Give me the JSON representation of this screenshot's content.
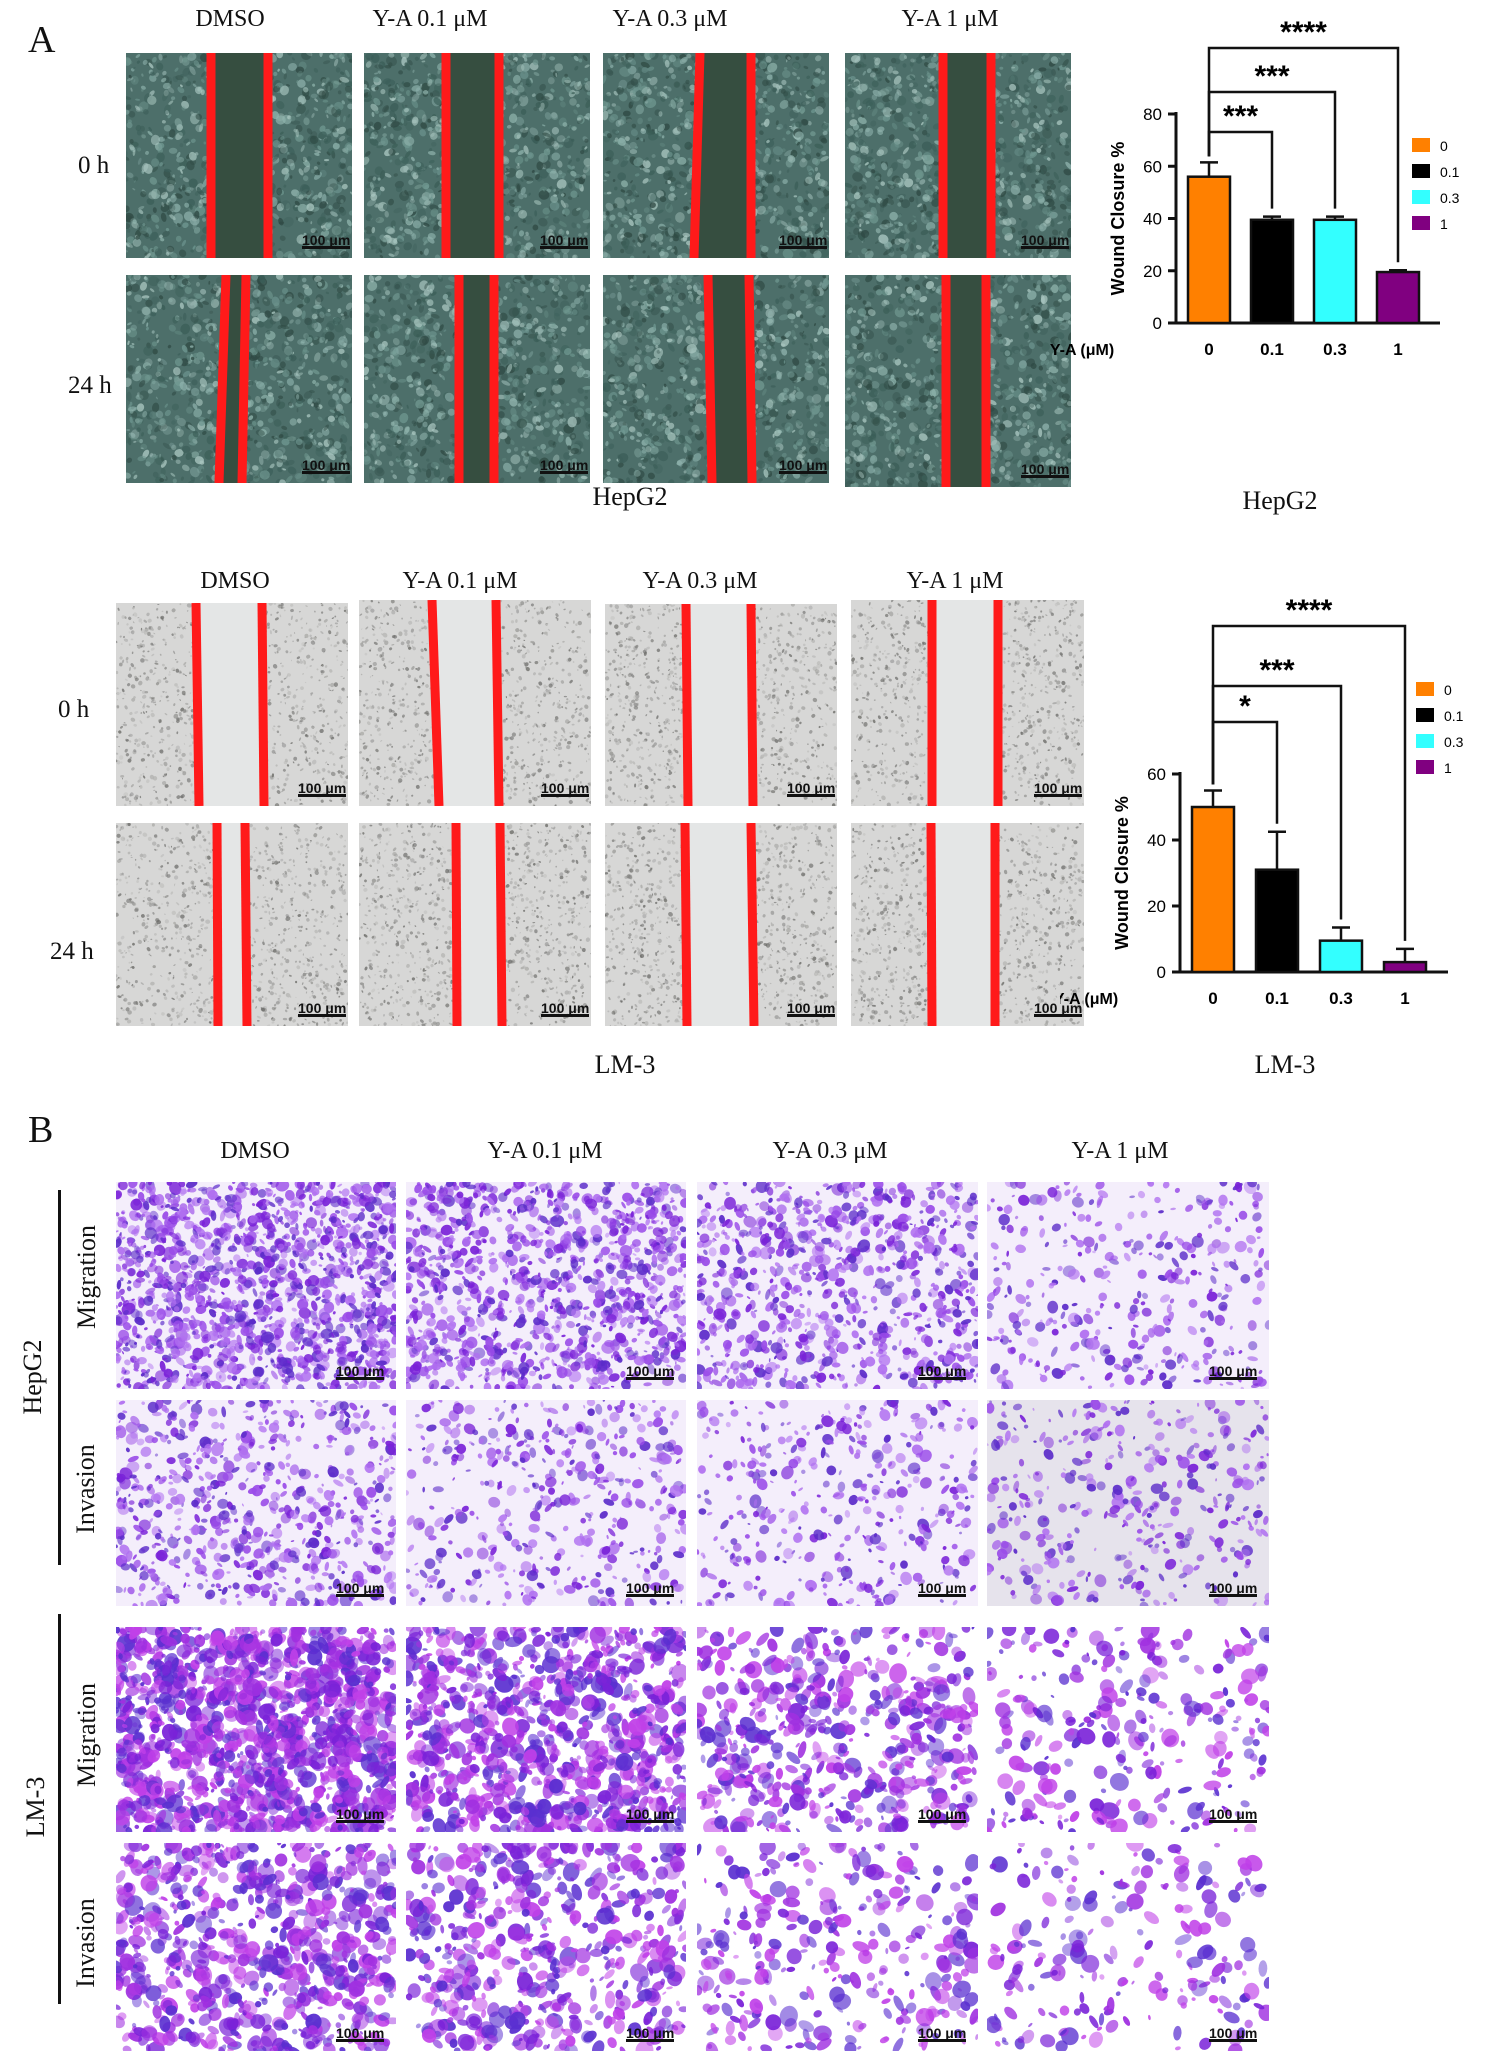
{
  "panel_a": {
    "letter": "A",
    "columns": [
      "DMSO",
      "Y-A 0.1 μM",
      "Y-A 0.3 μM",
      "Y-A 1 μM"
    ],
    "rows": [
      "0 h",
      "24 h"
    ],
    "scale_label": "100 μm",
    "hepg2_caption": "HepG2",
    "lm3_caption": "LM-3"
  },
  "panel_b": {
    "letter": "B",
    "columns": [
      "DMSO",
      "Y-A 0.1 μM",
      "Y-A 0.3 μM",
      "Y-A 1 μM"
    ],
    "groups": [
      "HepG2",
      "LM-3"
    ],
    "rows": [
      "Migration",
      "Invasion"
    ],
    "scale_label": "100 μm"
  },
  "colors": {
    "bar_0": "#FF8000",
    "bar_01": "#000000",
    "bar_03": "#33FFFF",
    "bar_1": "#800080",
    "wound_line": "#FF1A1A",
    "stain": "#7A22D8"
  },
  "chart_data": [
    {
      "type": "bar",
      "categories": [
        "0",
        "0.1",
        "0.3",
        "1"
      ],
      "values": [
        56,
        39.5,
        39.5,
        19.5
      ],
      "errors": [
        5.5,
        1.2,
        1.2,
        0.7
      ],
      "xlabel": "Y-A (μM)",
      "ylabel": "Wound Closure %",
      "ylim": [
        0,
        80
      ],
      "yticks": [
        0,
        20,
        40,
        60,
        80
      ],
      "legend": [
        "0",
        "0.1",
        "0.3",
        "1"
      ],
      "legend_position": "right",
      "significance": [
        "***",
        "***",
        "****"
      ],
      "caption": "HepG2"
    },
    {
      "type": "bar",
      "categories": [
        "0",
        "0.1",
        "0.3",
        "1"
      ],
      "values": [
        50,
        31,
        9.5,
        3
      ],
      "errors": [
        5,
        11.5,
        4,
        4
      ],
      "xlabel": "Y-A (μM)",
      "ylabel": "Wound Closure %",
      "ylim": [
        0,
        60
      ],
      "yticks": [
        0,
        20,
        40,
        60
      ],
      "legend": [
        "0",
        "0.1",
        "0.3",
        "1"
      ],
      "legend_position": "right",
      "significance": [
        "*",
        "***",
        "****"
      ],
      "caption": "LM-3"
    }
  ]
}
